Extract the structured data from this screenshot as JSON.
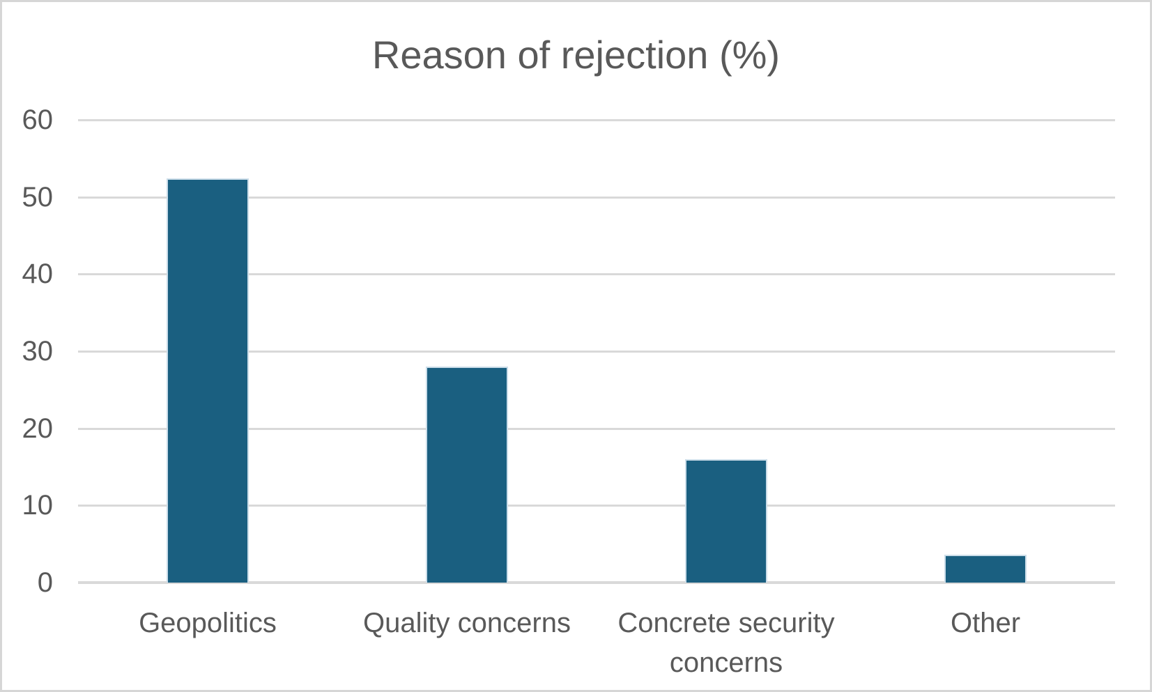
{
  "chart_data": {
    "type": "bar",
    "title": "Reason of rejection (%)",
    "categories": [
      "Geopolitics",
      "Quality concerns",
      "Concrete security concerns",
      "Other"
    ],
    "values": [
      52.4,
      28,
      16,
      3.6
    ],
    "xlabel": "",
    "ylabel": "",
    "ylim": [
      0,
      60
    ],
    "yticks": [
      0,
      10,
      20,
      30,
      40,
      50,
      60
    ],
    "grid": true,
    "legend": false,
    "colors": {
      "bar_fill": "#1A5F80",
      "bar_edge": "#CBDDE9",
      "gridline": "#D9D9D9",
      "axis_line": "#D9D9D9",
      "text": "#595959",
      "frame_border": "#D6D6D6",
      "background": "#FFFFFF"
    }
  }
}
